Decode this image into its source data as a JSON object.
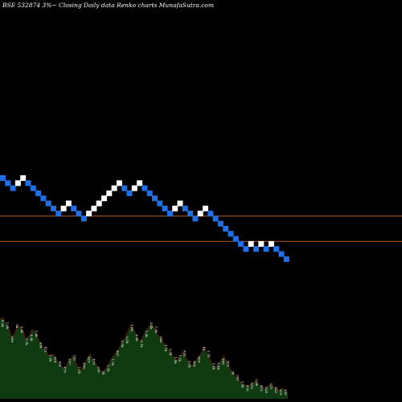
{
  "chart_data": {
    "type": "renko",
    "title": "BSE 532874  3%~  Closing Daily data  Renko  charts MunafaSutra.com",
    "colors": {
      "background": "#000000",
      "up_brick": "#ffffff",
      "down_brick": "#1f6fe8",
      "reference_line": "#b05c1e",
      "volume_fill": "#103a10",
      "volume_line": "#4a1c0e",
      "text": "#ffffff"
    },
    "bricks": [
      {
        "dir": "down",
        "level": 0
      },
      {
        "dir": "down",
        "level": -1
      },
      {
        "dir": "down",
        "level": -2
      },
      {
        "dir": "up",
        "level": -1
      },
      {
        "dir": "up",
        "level": 0
      },
      {
        "dir": "down",
        "level": -1
      },
      {
        "dir": "down",
        "level": -2
      },
      {
        "dir": "down",
        "level": -3
      },
      {
        "dir": "down",
        "level": -4
      },
      {
        "dir": "down",
        "level": -5
      },
      {
        "dir": "down",
        "level": -6
      },
      {
        "dir": "down",
        "level": -7
      },
      {
        "dir": "up",
        "level": -6
      },
      {
        "dir": "up",
        "level": -5
      },
      {
        "dir": "down",
        "level": -6
      },
      {
        "dir": "down",
        "level": -7
      },
      {
        "dir": "down",
        "level": -8
      },
      {
        "dir": "up",
        "level": -7
      },
      {
        "dir": "up",
        "level": -6
      },
      {
        "dir": "up",
        "level": -5
      },
      {
        "dir": "up",
        "level": -4
      },
      {
        "dir": "up",
        "level": -3
      },
      {
        "dir": "up",
        "level": -2
      },
      {
        "dir": "up",
        "level": -1
      },
      {
        "dir": "down",
        "level": -2
      },
      {
        "dir": "down",
        "level": -3
      },
      {
        "dir": "up",
        "level": -2
      },
      {
        "dir": "up",
        "level": -1
      },
      {
        "dir": "down",
        "level": -2
      },
      {
        "dir": "down",
        "level": -3
      },
      {
        "dir": "down",
        "level": -4
      },
      {
        "dir": "down",
        "level": -5
      },
      {
        "dir": "down",
        "level": -6
      },
      {
        "dir": "down",
        "level": -7
      },
      {
        "dir": "up",
        "level": -6
      },
      {
        "dir": "up",
        "level": -5
      },
      {
        "dir": "down",
        "level": -6
      },
      {
        "dir": "down",
        "level": -7
      },
      {
        "dir": "down",
        "level": -8
      },
      {
        "dir": "up",
        "level": -7
      },
      {
        "dir": "up",
        "level": -6
      },
      {
        "dir": "down",
        "level": -7
      },
      {
        "dir": "down",
        "level": -8
      },
      {
        "dir": "down",
        "level": -9
      },
      {
        "dir": "down",
        "level": -10
      },
      {
        "dir": "down",
        "level": -11
      },
      {
        "dir": "down",
        "level": -12
      },
      {
        "dir": "down",
        "level": -13
      },
      {
        "dir": "down",
        "level": -14
      },
      {
        "dir": "up",
        "level": -13
      },
      {
        "dir": "down",
        "level": -14
      },
      {
        "dir": "up",
        "level": -13
      },
      {
        "dir": "down",
        "level": -14
      },
      {
        "dir": "up",
        "level": -13
      },
      {
        "dir": "down",
        "level": -14
      },
      {
        "dir": "down",
        "level": -15
      },
      {
        "dir": "down",
        "level": -16
      }
    ],
    "reference_lines": [
      -7.5,
      -12.5
    ],
    "volume_profile": [
      0.78,
      0.8,
      0.74,
      0.7,
      0.6,
      0.64,
      0.72,
      0.7,
      0.66,
      0.58,
      0.62,
      0.68,
      0.66,
      0.6,
      0.54,
      0.5,
      0.46,
      0.42,
      0.44,
      0.4,
      0.36,
      0.32,
      0.3,
      0.34,
      0.38,
      0.42,
      0.36,
      0.3,
      0.28,
      0.34,
      0.4,
      0.44,
      0.38,
      0.34,
      0.3,
      0.26,
      0.28,
      0.32,
      0.38,
      0.42,
      0.46,
      0.5,
      0.56,
      0.6,
      0.66,
      0.72,
      0.68,
      0.62,
      0.56,
      0.6,
      0.66,
      0.7,
      0.74,
      0.7,
      0.64,
      0.6,
      0.56,
      0.52,
      0.48,
      0.44,
      0.4,
      0.38,
      0.42,
      0.46,
      0.4,
      0.36,
      0.32,
      0.36,
      0.4,
      0.44,
      0.5,
      0.46,
      0.4,
      0.34,
      0.3,
      0.34,
      0.38,
      0.42,
      0.36,
      0.3,
      0.26,
      0.22,
      0.18,
      0.16,
      0.14,
      0.12,
      0.14,
      0.16,
      0.18,
      0.14,
      0.12,
      0.1,
      0.12,
      0.14,
      0.12,
      0.1,
      0.08,
      0.1,
      0.08,
      0.06
    ],
    "volume_labels": [
      "8.5k",
      "1.8k",
      "699",
      "5k",
      "2.8k",
      "1.1k",
      "3.5k",
      "1.8k",
      "690",
      "412",
      "1.4k",
      "628",
      "395",
      "479",
      "257",
      "198",
      "1.2k",
      "409",
      "625",
      "479",
      "236",
      "2k",
      "1.5k",
      "1.1k",
      "887",
      "5.5k",
      "3.5k",
      "1.6k",
      "2.2k",
      "6.1k",
      "1.3k",
      "2.4k",
      "1.6k",
      "848",
      "1.1k",
      "2.5k",
      "1.4k",
      "1.1k",
      "652",
      "1.2k",
      "895",
      "630",
      "4k",
      "2.1k",
      "1.4k",
      "1.8k",
      "690",
      "625",
      "5k",
      "948",
      "1.5k",
      "678",
      "812",
      "3.5k",
      "415",
      "626",
      "515",
      "432",
      "318",
      "220"
    ]
  }
}
